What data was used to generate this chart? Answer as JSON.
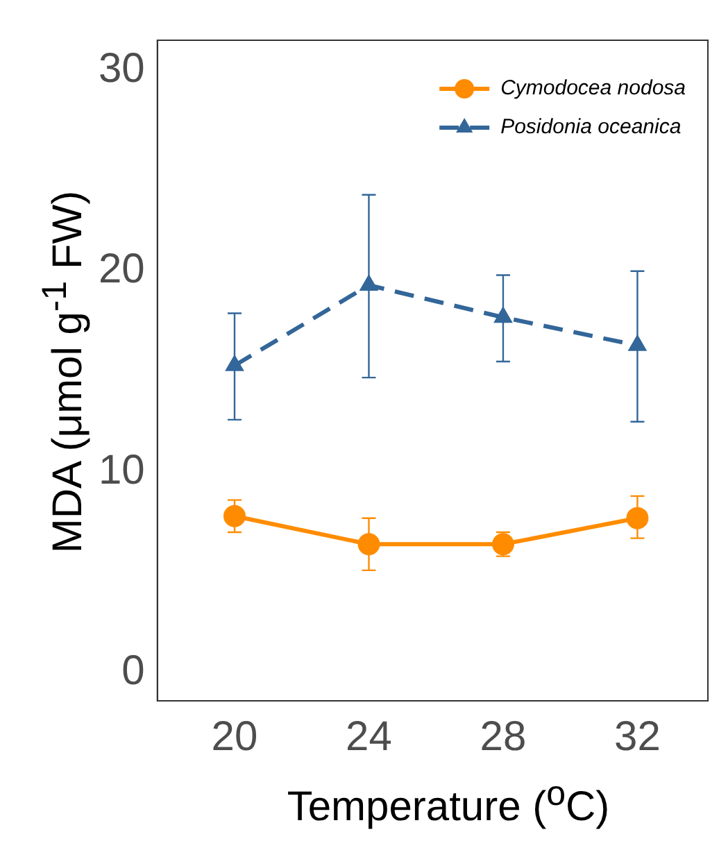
{
  "chart_data": {
    "type": "line",
    "xlabel": "Temperature ($^{o}$C)",
    "ylabel": "MDA (μmol g$^{-1}$ FW)",
    "x": [
      20,
      24,
      28,
      32
    ],
    "xlim": [
      17.7,
      34.1
    ],
    "xticks": [
      20,
      24,
      28,
      32
    ],
    "ylim": [
      -1.4,
      31.5
    ],
    "yticks": [
      0,
      10,
      20,
      30
    ],
    "grid": false,
    "legend": "top right",
    "series": [
      {
        "name": "Cymodocea nodosa",
        "color": "#ff8c00",
        "marker": "circle",
        "line_style": "solid",
        "values": [
          7.8,
          6.4,
          6.4,
          7.7
        ],
        "errors": [
          [
            7.0,
            8.6
          ],
          [
            5.1,
            7.7
          ],
          [
            5.8,
            7.0
          ],
          [
            6.7,
            8.8
          ]
        ]
      },
      {
        "name": "Posidonia oceanica",
        "color": "#336699",
        "marker": "triangle",
        "line_style": "dashed",
        "values": [
          15.3,
          19.3,
          17.7,
          16.3
        ],
        "errors": [
          [
            12.6,
            17.9
          ],
          [
            14.7,
            23.8
          ],
          [
            15.5,
            19.8
          ],
          [
            12.5,
            20.0
          ]
        ]
      }
    ]
  }
}
